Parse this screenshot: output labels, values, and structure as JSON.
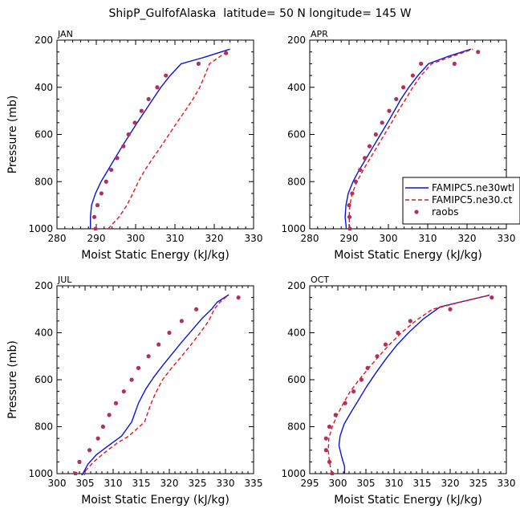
{
  "figure_title": "ShipP_GulfofAlaska  latitude= 50 N longitude= 145 W",
  "colors": {
    "model_wtl": "#0a14d8",
    "model_ct": "#e8141e",
    "raobs": "#b1305c",
    "axis": "#000000"
  },
  "legend": {
    "placement": "right, in APR panel",
    "entries": [
      {
        "label": "FAMIPC5.ne30wtl",
        "style": "solid",
        "color": "#0a14d8"
      },
      {
        "label": "FAMIPC5.ne30.ct",
        "style": "dashed",
        "color": "#e8141e"
      },
      {
        "label": "raobs",
        "style": "dots",
        "color": "#b1305c"
      }
    ]
  },
  "chart_data": [
    {
      "type": "line",
      "panel_label": "JAN",
      "xlabel": "Moist Static Energy (kJ/kg)",
      "ylabel": "Pressure (mb)",
      "xlim": [
        280,
        330
      ],
      "ylim": [
        1000,
        200
      ],
      "xticks": [
        280,
        290,
        300,
        310,
        320,
        330
      ],
      "yticks": [
        200,
        400,
        600,
        800,
        1000
      ],
      "series": [
        {
          "name": "FAMIPC5.ne30wtl",
          "points": [
            [
              288.5,
              1000
            ],
            [
              288.5,
              950
            ],
            [
              288.8,
              900
            ],
            [
              289.8,
              850
            ],
            [
              291.2,
              800
            ],
            [
              293,
              750
            ],
            [
              294.8,
              700
            ],
            [
              296.6,
              650
            ],
            [
              298.5,
              600
            ],
            [
              300.4,
              550
            ],
            [
              302.4,
              500
            ],
            [
              304.4,
              450
            ],
            [
              306.4,
              400
            ],
            [
              308.8,
              350
            ],
            [
              311.6,
              300
            ],
            [
              317,
              275
            ],
            [
              324,
              238
            ]
          ]
        },
        {
          "name": "FAMIPC5.ne30.ct",
          "points": [
            [
              293,
              1000
            ],
            [
              295.8,
              950
            ],
            [
              297.8,
              900
            ],
            [
              299.3,
              850
            ],
            [
              300.7,
              800
            ],
            [
              302.4,
              750
            ],
            [
              304.4,
              700
            ],
            [
              306.5,
              650
            ],
            [
              308.5,
              600
            ],
            [
              310.5,
              550
            ],
            [
              312.6,
              500
            ],
            [
              314.6,
              450
            ],
            [
              316.3,
              400
            ],
            [
              317.6,
              350
            ],
            [
              318.8,
              300
            ],
            [
              321.4,
              270
            ],
            [
              323.6,
              245
            ]
          ]
        },
        {
          "name": "raobs",
          "points": [
            [
              289.8,
              1000
            ],
            [
              289.5,
              950
            ],
            [
              290.3,
              900
            ],
            [
              291.3,
              850
            ],
            [
              292.5,
              800
            ],
            [
              293.8,
              750
            ],
            [
              295.3,
              700
            ],
            [
              296.9,
              650
            ],
            [
              298.2,
              600
            ],
            [
              299.8,
              550
            ],
            [
              301.5,
              500
            ],
            [
              303.3,
              450
            ],
            [
              305.5,
              400
            ],
            [
              307.7,
              350
            ],
            [
              316,
              300
            ],
            [
              323,
              255
            ]
          ]
        }
      ]
    },
    {
      "type": "line",
      "panel_label": "APR",
      "xlabel": "Moist Static Energy (kJ/kg)",
      "ylabel": "",
      "xlim": [
        280,
        330
      ],
      "ylim": [
        1000,
        200
      ],
      "xticks": [
        280,
        290,
        300,
        310,
        320,
        330
      ],
      "yticks": [
        200,
        400,
        600,
        800,
        1000
      ],
      "series": [
        {
          "name": "FAMIPC5.ne30wtl",
          "points": [
            [
              289.3,
              1000
            ],
            [
              289,
              950
            ],
            [
              289.2,
              900
            ],
            [
              289.8,
              850
            ],
            [
              291,
              800
            ],
            [
              292.6,
              750
            ],
            [
              294.4,
              700
            ],
            [
              296.2,
              650
            ],
            [
              298,
              600
            ],
            [
              299.8,
              550
            ],
            [
              301.5,
              500
            ],
            [
              303.2,
              450
            ],
            [
              305.2,
              400
            ],
            [
              307.5,
              350
            ],
            [
              310.2,
              300
            ],
            [
              315,
              270
            ],
            [
              321,
              238
            ]
          ]
        },
        {
          "name": "FAMIPC5.ne30.ct",
          "points": [
            [
              290.2,
              1000
            ],
            [
              290,
              950
            ],
            [
              290.2,
              900
            ],
            [
              290.8,
              850
            ],
            [
              292,
              800
            ],
            [
              293.6,
              750
            ],
            [
              295.4,
              700
            ],
            [
              297.2,
              650
            ],
            [
              299,
              600
            ],
            [
              300.8,
              550
            ],
            [
              302.5,
              500
            ],
            [
              304.4,
              450
            ],
            [
              306.2,
              400
            ],
            [
              308.3,
              350
            ],
            [
              311,
              300
            ],
            [
              316,
              270
            ],
            [
              321.5,
              238
            ]
          ]
        },
        {
          "name": "raobs",
          "points": [
            [
              290.2,
              1000
            ],
            [
              290.1,
              950
            ],
            [
              290,
              900
            ],
            [
              290.8,
              850
            ],
            [
              291.7,
              800
            ],
            [
              292.8,
              750
            ],
            [
              294,
              700
            ],
            [
              295.2,
              650
            ],
            [
              296.8,
              600
            ],
            [
              298.4,
              550
            ],
            [
              300.2,
              500
            ],
            [
              302,
              450
            ],
            [
              303.8,
              400
            ],
            [
              306.2,
              350
            ],
            [
              308.3,
              300
            ],
            [
              316.8,
              300
            ],
            [
              322.8,
              250
            ]
          ]
        }
      ]
    },
    {
      "type": "line",
      "panel_label": "JUL",
      "xlabel": "Moist Static Energy (kJ/kg)",
      "ylabel": "Pressure (mb)",
      "xlim": [
        300,
        335
      ],
      "ylim": [
        1000,
        200
      ],
      "xticks": [
        300,
        305,
        310,
        315,
        320,
        325,
        330,
        335
      ],
      "yticks": [
        200,
        400,
        600,
        800,
        1000
      ],
      "series": [
        {
          "name": "FAMIPC5.ne30wtl",
          "points": [
            [
              304.2,
              1015
            ],
            [
              304.6,
              1000
            ],
            [
              305.5,
              960
            ],
            [
              307,
              920
            ],
            [
              309.2,
              880
            ],
            [
              311.5,
              840
            ],
            [
              313.3,
              780
            ],
            [
              314.5,
              700
            ],
            [
              315.8,
              640
            ],
            [
              317.2,
              590
            ],
            [
              318.8,
              540
            ],
            [
              320.5,
              490
            ],
            [
              322.2,
              440
            ],
            [
              324,
              390
            ],
            [
              325.8,
              340
            ],
            [
              327.5,
              300
            ],
            [
              328.5,
              270
            ],
            [
              330.6,
              238
            ]
          ]
        },
        {
          "name": "FAMIPC5.ne30.ct",
          "points": [
            [
              304.8,
              1015
            ],
            [
              305,
              990
            ],
            [
              306.5,
              950
            ],
            [
              308.5,
              910
            ],
            [
              310.7,
              870
            ],
            [
              312.8,
              840
            ],
            [
              315.6,
              780
            ],
            [
              316.6,
              710
            ],
            [
              317.5,
              660
            ],
            [
              318.8,
              600
            ],
            [
              320.4,
              550
            ],
            [
              322.2,
              500
            ],
            [
              323.9,
              450
            ],
            [
              325.5,
              400
            ],
            [
              327,
              350
            ],
            [
              328,
              300
            ],
            [
              329,
              270
            ],
            [
              330.6,
              238
            ]
          ]
        },
        {
          "name": "raobs",
          "points": [
            [
              303.3,
              1000
            ],
            [
              304,
              950
            ],
            [
              305.8,
              900
            ],
            [
              307.3,
              850
            ],
            [
              308.2,
              800
            ],
            [
              309.3,
              750
            ],
            [
              310.5,
              700
            ],
            [
              311.9,
              650
            ],
            [
              313.3,
              600
            ],
            [
              314.5,
              550
            ],
            [
              316.3,
              500
            ],
            [
              318.1,
              450
            ],
            [
              320,
              400
            ],
            [
              322.2,
              350
            ],
            [
              324.8,
              300
            ],
            [
              332.3,
              250
            ]
          ]
        }
      ]
    },
    {
      "type": "line",
      "panel_label": "OCT",
      "xlabel": "Moist Static Energy (kJ/kg)",
      "ylabel": "",
      "xlim": [
        295,
        330
      ],
      "ylim": [
        1000,
        200
      ],
      "xticks": [
        295,
        300,
        305,
        310,
        315,
        320,
        325,
        330
      ],
      "yticks": [
        200,
        400,
        600,
        800,
        1000
      ],
      "series": [
        {
          "name": "FAMIPC5.ne30wtl",
          "points": [
            [
              301.2,
              1000
            ],
            [
              301.2,
              970
            ],
            [
              300.7,
              930
            ],
            [
              300.2,
              880
            ],
            [
              300.4,
              840
            ],
            [
              301.1,
              790
            ],
            [
              302.3,
              740
            ],
            [
              303.6,
              690
            ],
            [
              305.1,
              630
            ],
            [
              306.8,
              570
            ],
            [
              308.6,
              510
            ],
            [
              310.6,
              450
            ],
            [
              312.8,
              395
            ],
            [
              315.3,
              340
            ],
            [
              318.2,
              290
            ],
            [
              321.6,
              270
            ],
            [
              327,
              240
            ]
          ]
        },
        {
          "name": "FAMIPC5.ne30.ct",
          "points": [
            [
              298.9,
              1000
            ],
            [
              298.5,
              950
            ],
            [
              298.3,
              900
            ],
            [
              298.4,
              850
            ],
            [
              299,
              800
            ],
            [
              299.9,
              750
            ],
            [
              301,
              700
            ],
            [
              302.2,
              650
            ],
            [
              303.8,
              600
            ],
            [
              305.5,
              550
            ],
            [
              307.3,
              500
            ],
            [
              309.2,
              450
            ],
            [
              311.3,
              400
            ],
            [
              313.8,
              350
            ],
            [
              316.8,
              300
            ],
            [
              321.4,
              272
            ],
            [
              327,
              240
            ]
          ]
        },
        {
          "name": "raobs",
          "points": [
            [
              299,
              1000
            ],
            [
              298.5,
              950
            ],
            [
              297.9,
              900
            ],
            [
              297.9,
              850
            ],
            [
              298.5,
              800
            ],
            [
              299.6,
              750
            ],
            [
              301.3,
              700
            ],
            [
              302.8,
              650
            ],
            [
              304.2,
              600
            ],
            [
              305.3,
              550
            ],
            [
              307,
              500
            ],
            [
              308.5,
              450
            ],
            [
              310.7,
              400
            ],
            [
              312.9,
              350
            ],
            [
              320,
              300
            ],
            [
              327.4,
              250
            ]
          ]
        }
      ]
    }
  ]
}
